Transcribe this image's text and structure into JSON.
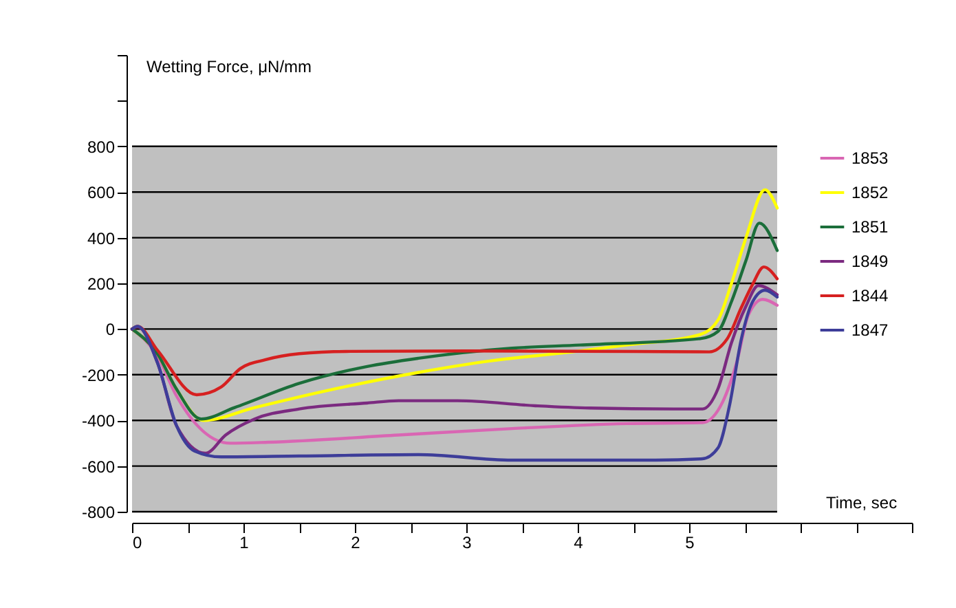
{
  "chart_data": {
    "type": "line",
    "xlabel": "Time, sec",
    "ylabel": "Wetting Force, μN/mm",
    "xlim": [
      0,
      7
    ],
    "ylim": [
      -800,
      1200
    ],
    "xticks": [
      0,
      {
        "value": 0.5,
        "label": null
      },
      1,
      {
        "value": 1.5,
        "label": null
      },
      2,
      {
        "value": 2.5,
        "label": null
      },
      3,
      {
        "value": 3.5,
        "label": null
      },
      4,
      {
        "value": 4.5,
        "label": null
      },
      5,
      {
        "value": 5.5,
        "label": null
      },
      {
        "value": 6,
        "label": null
      },
      {
        "value": 6.5,
        "label": null
      },
      {
        "value": 7,
        "label": null
      }
    ],
    "yticks": [
      -800,
      -600,
      -400,
      -200,
      0,
      200,
      400,
      600,
      800,
      {
        "value": 1000,
        "label": null
      },
      {
        "value": 1200,
        "label": null
      }
    ],
    "grid": "y",
    "legend": "right",
    "bands": [
      {
        "axis": "y",
        "from": -800,
        "to": 800,
        "color": "#c0c0c0"
      }
    ],
    "series": [
      {
        "name": "1853",
        "color": "#d966b3",
        "x": [
          0,
          0.23,
          0.4,
          0.88,
          1.22,
          2.39,
          3.41,
          4.44,
          5.12,
          5.3,
          5.43,
          5.53,
          5.66,
          5.79
        ],
        "values": [
          0,
          -120,
          -294,
          -500,
          -496,
          -464,
          -436,
          -414,
          -410,
          -320,
          -140,
          60,
          130,
          104
        ]
      },
      {
        "name": "1852",
        "color": "#ffff00",
        "x": [
          0,
          0.23,
          0.4,
          0.64,
          1.1,
          1.71,
          2.57,
          3.21,
          3.95,
          4.44,
          5.1,
          5.26,
          5.38,
          5.51,
          5.68,
          5.79
        ],
        "values": [
          0,
          -110,
          -264,
          -400,
          -344,
          -274,
          -190,
          -140,
          -100,
          -70,
          -24,
          40,
          200,
          400,
          610,
          530
        ]
      },
      {
        "name": "1851",
        "color": "#1b6e3a",
        "x": [
          0,
          0.23,
          0.4,
          0.62,
          0.92,
          1.5,
          2.11,
          2.57,
          3.41,
          4.02,
          5.1,
          5.26,
          5.38,
          5.51,
          5.63,
          5.79
        ],
        "values": [
          0,
          -110,
          -264,
          -394,
          -344,
          -238,
          -164,
          -128,
          -84,
          -70,
          -42,
          -10,
          120,
          300,
          464,
          344
        ]
      },
      {
        "name": "1849",
        "color": "#7b2a80",
        "x": [
          0,
          0.05,
          0.23,
          0.4,
          0.66,
          0.84,
          1.1,
          1.5,
          2.11,
          2.39,
          2.92,
          3.62,
          4.11,
          4.86,
          5.12,
          5.26,
          5.38,
          5.51,
          5.62,
          5.79
        ],
        "values": [
          0,
          10,
          -150,
          -424,
          -544,
          -464,
          -394,
          -350,
          -324,
          -314,
          -314,
          -336,
          -346,
          -350,
          -350,
          -260,
          -60,
          100,
          190,
          150
        ]
      },
      {
        "name": "1844",
        "color": "#d62020",
        "x": [
          0,
          0.05,
          0.23,
          0.58,
          0.8,
          0.97,
          1.2,
          1.5,
          1.92,
          3,
          4.5,
          5.18,
          5.34,
          5.47,
          5.57,
          5.67,
          5.79
        ],
        "values": [
          0,
          12,
          -94,
          -288,
          -254,
          -174,
          -134,
          -108,
          -98,
          -96,
          -98,
          -100,
          -44,
          96,
          196,
          272,
          220
        ]
      },
      {
        "name": "1847",
        "color": "#3d3d99",
        "x": [
          0,
          0.05,
          0.23,
          0.4,
          0.56,
          0.8,
          1.5,
          2.57,
          3.41,
          4.7,
          5.12,
          5.26,
          5.36,
          5.47,
          5.57,
          5.68,
          5.79
        ],
        "values": [
          0,
          12,
          -150,
          -424,
          -534,
          -560,
          -556,
          -550,
          -574,
          -574,
          -568,
          -520,
          -340,
          -40,
          120,
          170,
          140
        ]
      }
    ]
  }
}
